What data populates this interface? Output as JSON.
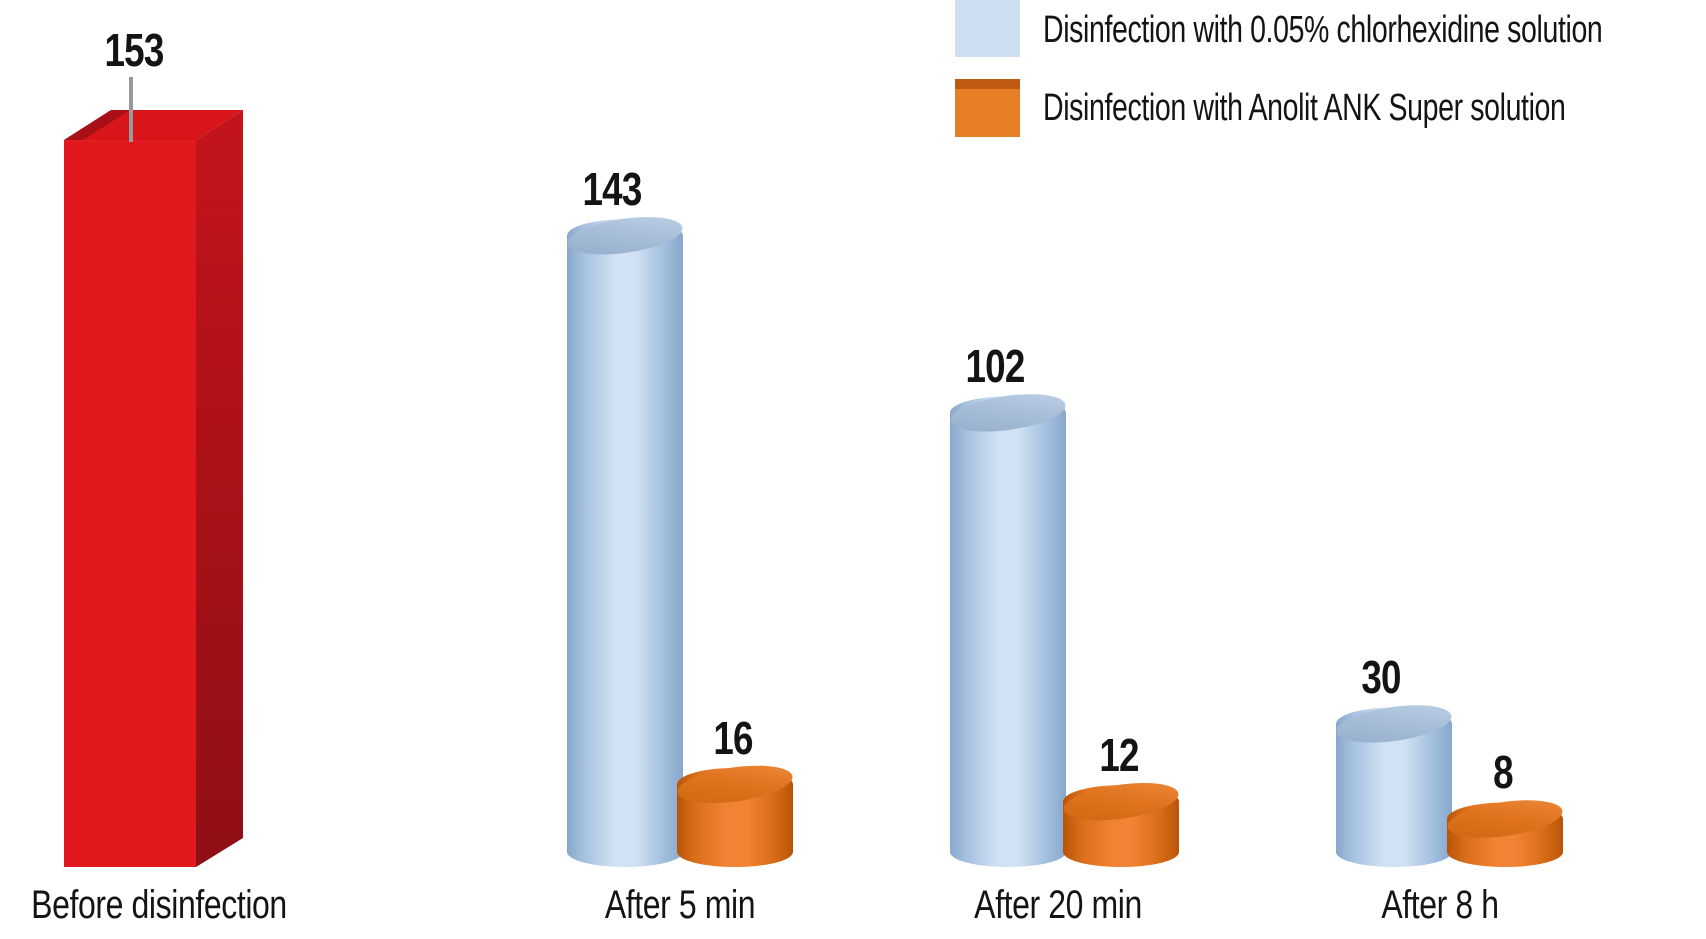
{
  "chart_data": {
    "type": "bar",
    "style": "3d-infographic-pictogram",
    "title": "",
    "xlabel": "",
    "ylabel": "",
    "axes_shown": false,
    "grid": false,
    "value_labels_shown": true,
    "legend_position": "top-right",
    "ylim": [
      0,
      160
    ],
    "categories": [
      "Before disinfection",
      "After 5 min",
      "After 20 min",
      "After 8 h"
    ],
    "series": [
      {
        "id": "before",
        "name": "Before disinfection",
        "shape": "box",
        "color": "#e2181f",
        "values": [
          153,
          null,
          null,
          null
        ]
      },
      {
        "id": "chlorhexidine",
        "name": "Disinfection with 0.05% chlorhexidine solution",
        "shape": "cylinder",
        "color": "#cfdff2",
        "values": [
          null,
          143,
          102,
          30
        ]
      },
      {
        "id": "anolit",
        "name": "Disinfection with Anolit ANK Super solution",
        "shape": "cylinder",
        "color": "#e67e26",
        "values": [
          null,
          16,
          12,
          8
        ]
      }
    ]
  },
  "legend": {
    "items": [
      {
        "label": "Disinfection with 0.05% chlorhexidine solution",
        "color": "#cfdff2"
      },
      {
        "label": "Disinfection with Anolit ANK Super solution",
        "color": "#e67e26",
        "band_color": "#c05a10"
      }
    ]
  },
  "palette": {
    "background": "#ffffff",
    "text": "#141414",
    "leader_line": "#9a9a9a",
    "red_front": "#e2181f",
    "red_top": "#d9151c",
    "red_top_shade": "#a81016",
    "red_side_top": "#c4141b",
    "red_side_bottom": "#8e0f14",
    "blue_body_edge": "#87a7cc",
    "blue_body_mid": "#a5c1e0",
    "blue_body_center": "#d2e2f4",
    "blue_top_dark": "#92accb",
    "blue_top_light": "#bed2e9",
    "orange_body_edge": "#b85408",
    "orange_body_mid": "#d86c16",
    "orange_body_center": "#f08434",
    "orange_top_dark": "#d0660f",
    "orange_top_light": "#ef8b3a",
    "legend_blue": "#cfdff2",
    "legend_orange": "#e67e26",
    "legend_orange_band": "#c05a10"
  }
}
